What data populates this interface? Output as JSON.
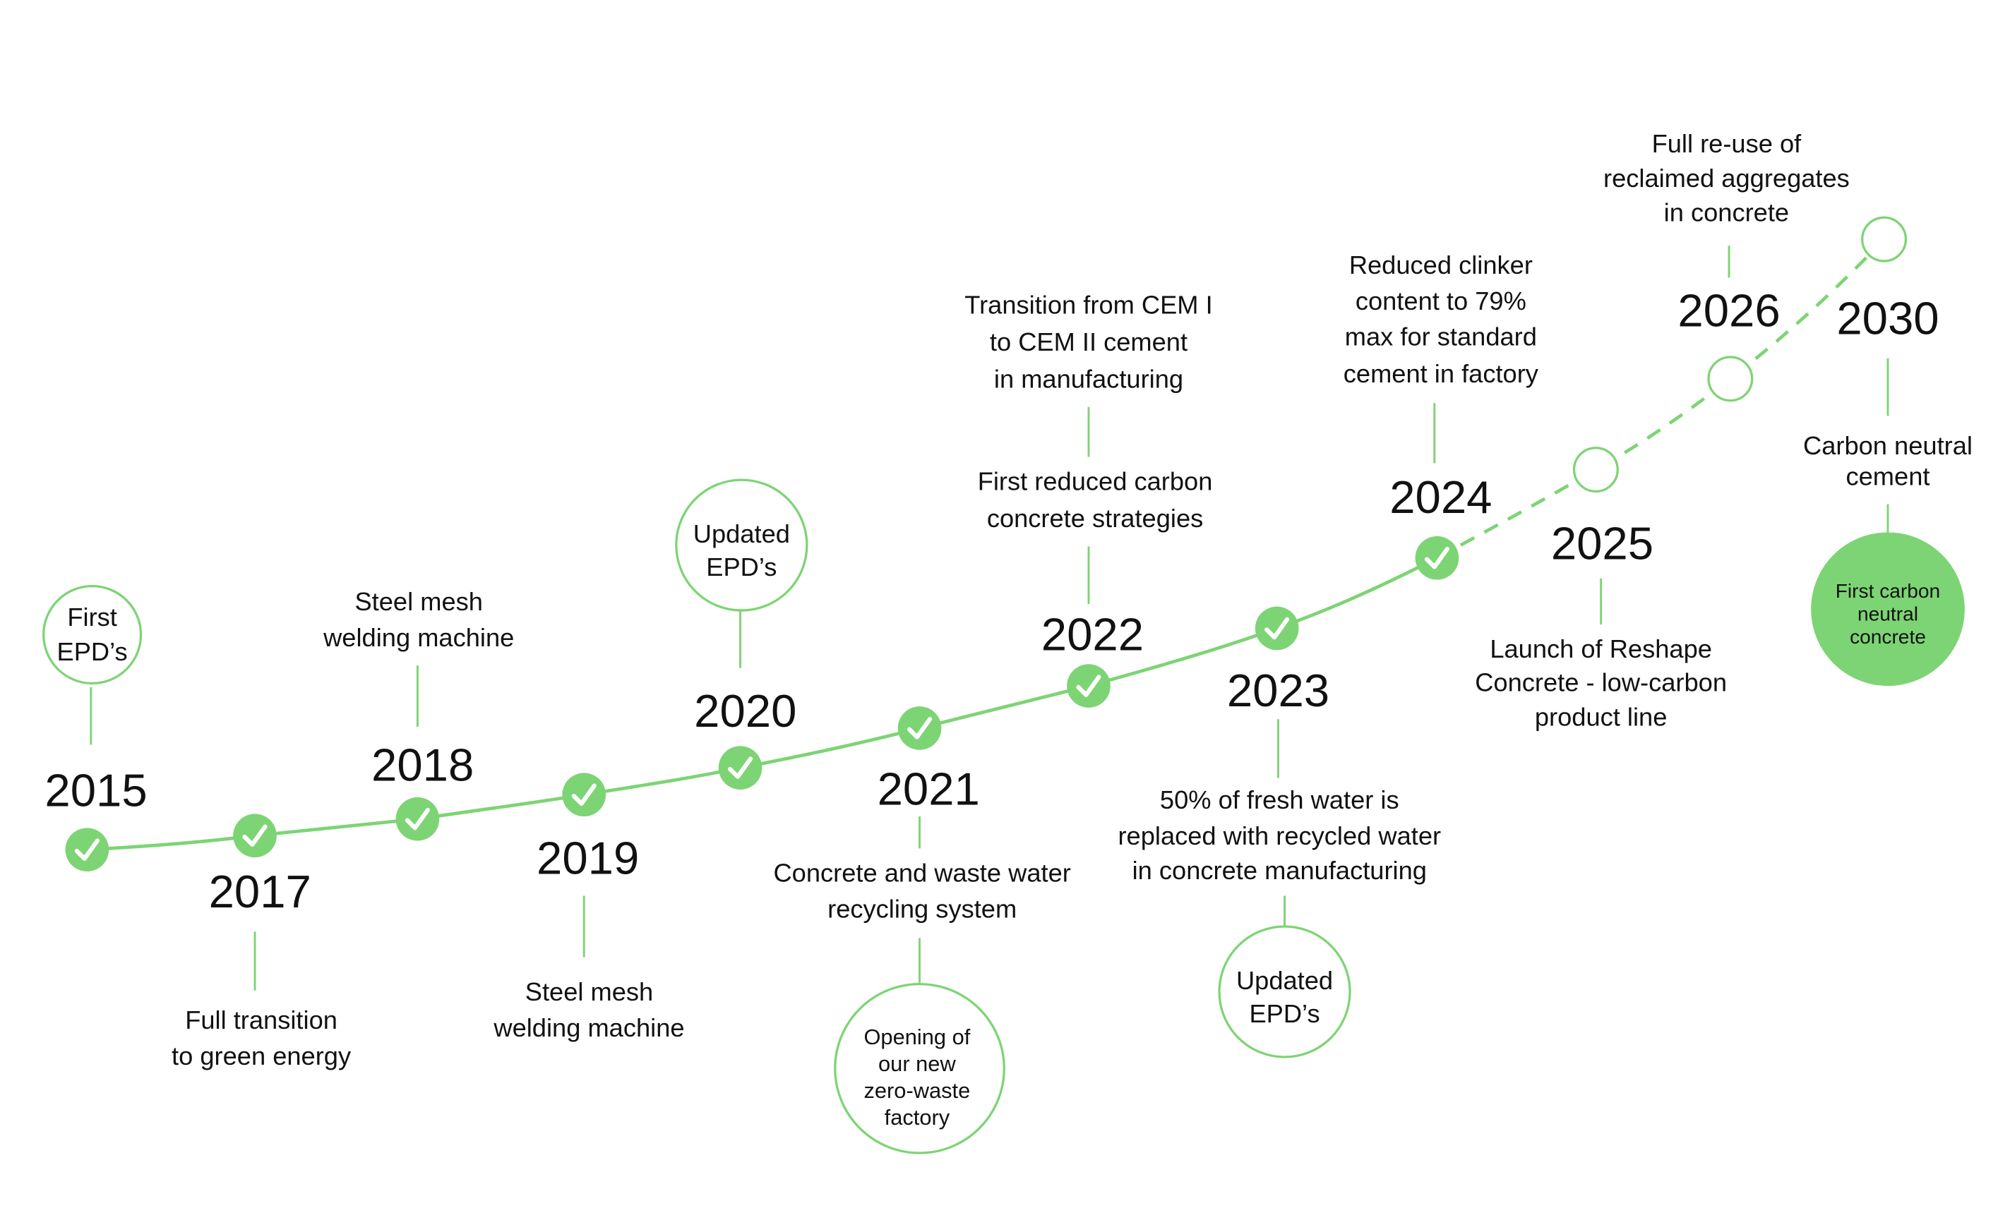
{
  "colors": {
    "accent": "#7dd474",
    "text": "#111111"
  },
  "milestones": [
    {
      "year": "2015",
      "status": "done",
      "bubble": [
        "First",
        "EPD’s"
      ]
    },
    {
      "year": "2017",
      "status": "done",
      "text": [
        "Full transition",
        "to green energy"
      ]
    },
    {
      "year": "2018",
      "status": "done",
      "text": [
        "Steel mesh",
        "welding machine"
      ]
    },
    {
      "year": "2019",
      "status": "done",
      "text": [
        "Steel mesh",
        "welding machine"
      ]
    },
    {
      "year": "2020",
      "status": "done",
      "bubble": [
        "Updated",
        "EPD’s"
      ]
    },
    {
      "year": "2021",
      "status": "done",
      "text": [
        "Concrete and waste water",
        "recycling system"
      ],
      "bubble": [
        "Opening of",
        "our new",
        "zero-waste",
        "factory"
      ]
    },
    {
      "year": "2022",
      "status": "done",
      "text": [
        "First reduced carbon",
        "concrete strategies"
      ],
      "text2": [
        "Transition from CEM I",
        "to CEM II cement",
        "in manufacturing"
      ]
    },
    {
      "year": "2023",
      "status": "done",
      "text": [
        "50% of fresh water is",
        "replaced with recycled water",
        "in concrete manufacturing"
      ],
      "bubble": [
        "Updated",
        "EPD’s"
      ]
    },
    {
      "year": "2024",
      "status": "done",
      "text": [
        "Reduced clinker",
        "content to 79%",
        "max for standard",
        "cement in factory"
      ]
    },
    {
      "year": "2025",
      "status": "planned",
      "text": [
        "Launch of Reshape",
        "Concrete - low-carbon",
        "product line"
      ]
    },
    {
      "year": "2026",
      "status": "planned",
      "text": [
        "Full re-use of",
        "reclaimed aggregates",
        "in concrete"
      ]
    },
    {
      "year": "2030",
      "status": "planned",
      "text": [
        "Carbon neutral",
        "cement"
      ],
      "bubble": [
        "First carbon",
        "neutral",
        "concrete"
      ]
    }
  ]
}
